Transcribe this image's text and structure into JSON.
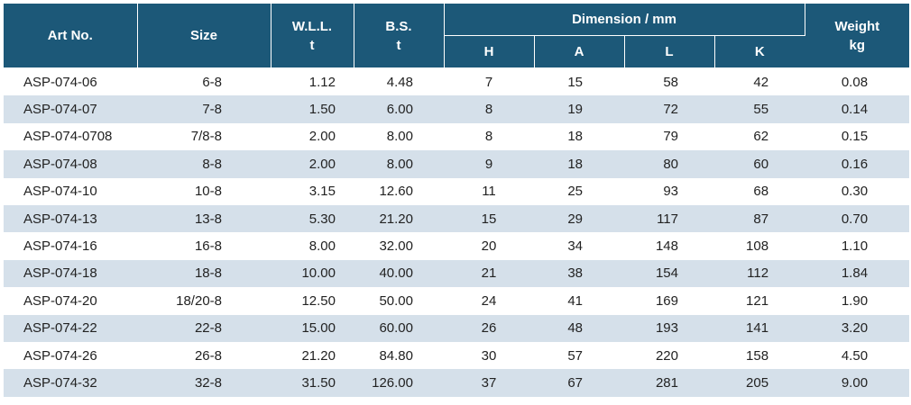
{
  "header": {
    "art_no": "Art No.",
    "size": "Size",
    "wll": "W.L.L.",
    "wll_unit": "t",
    "bs": "B.S.",
    "bs_unit": "t",
    "dimension": "Dimension / mm",
    "h": "H",
    "a": "A",
    "l": "L",
    "k": "K",
    "weight": "Weight",
    "weight_unit": "kg"
  },
  "rows": [
    {
      "art": "ASP-074-06",
      "size": "6-8",
      "wll": "1.12",
      "bs": "4.48",
      "h": "7",
      "a": "15",
      "l": "58",
      "k": "42",
      "weight": "0.08"
    },
    {
      "art": "ASP-074-07",
      "size": "7-8",
      "wll": "1.50",
      "bs": "6.00",
      "h": "8",
      "a": "19",
      "l": "72",
      "k": "55",
      "weight": "0.14"
    },
    {
      "art": "ASP-074-0708",
      "size": "7/8-8",
      "wll": "2.00",
      "bs": "8.00",
      "h": "8",
      "a": "18",
      "l": "79",
      "k": "62",
      "weight": "0.15"
    },
    {
      "art": "ASP-074-08",
      "size": "8-8",
      "wll": "2.00",
      "bs": "8.00",
      "h": "9",
      "a": "18",
      "l": "80",
      "k": "60",
      "weight": "0.16"
    },
    {
      "art": "ASP-074-10",
      "size": "10-8",
      "wll": "3.15",
      "bs": "12.60",
      "h": "11",
      "a": "25",
      "l": "93",
      "k": "68",
      "weight": "0.30"
    },
    {
      "art": "ASP-074-13",
      "size": "13-8",
      "wll": "5.30",
      "bs": "21.20",
      "h": "15",
      "a": "29",
      "l": "117",
      "k": "87",
      "weight": "0.70"
    },
    {
      "art": "ASP-074-16",
      "size": "16-8",
      "wll": "8.00",
      "bs": "32.00",
      "h": "20",
      "a": "34",
      "l": "148",
      "k": "108",
      "weight": "1.10"
    },
    {
      "art": "ASP-074-18",
      "size": "18-8",
      "wll": "10.00",
      "bs": "40.00",
      "h": "21",
      "a": "38",
      "l": "154",
      "k": "112",
      "weight": "1.84"
    },
    {
      "art": "ASP-074-20",
      "size": "18/20-8",
      "wll": "12.50",
      "bs": "50.00",
      "h": "24",
      "a": "41",
      "l": "169",
      "k": "121",
      "weight": "1.90"
    },
    {
      "art": "ASP-074-22",
      "size": "22-8",
      "wll": "15.00",
      "bs": "60.00",
      "h": "26",
      "a": "48",
      "l": "193",
      "k": "141",
      "weight": "3.20"
    },
    {
      "art": "ASP-074-26",
      "size": "26-8",
      "wll": "21.20",
      "bs": "84.80",
      "h": "30",
      "a": "57",
      "l": "220",
      "k": "158",
      "weight": "4.50"
    },
    {
      "art": "ASP-074-32",
      "size": "32-8",
      "wll": "31.50",
      "bs": "126.00",
      "h": "37",
      "a": "67",
      "l": "281",
      "k": "205",
      "weight": "9.00"
    }
  ],
  "colors": {
    "header_bg": "#1c5878",
    "header_text": "#ffffff",
    "row_alt_bg": "#d5e0ea",
    "row_bg": "#ffffff",
    "text": "#222222"
  }
}
